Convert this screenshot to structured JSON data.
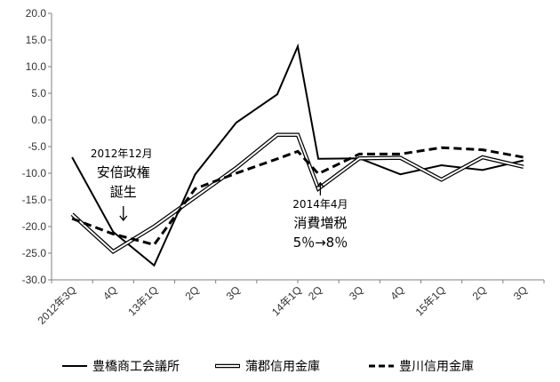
{
  "chart_data": {
    "type": "line",
    "categories": [
      "2012年3Q",
      "4Q",
      "13年1Q",
      "2Q",
      "3Q",
      "14年1Q",
      "2Q",
      "3Q",
      "4Q",
      "15年1Q",
      "2Q",
      "3Q"
    ],
    "x_positions": [
      0,
      1,
      2,
      3,
      4,
      5.5,
      6,
      7,
      8,
      9,
      10,
      11
    ],
    "category_slots": 12,
    "ylim": [
      -30,
      20
    ],
    "yticks": [
      "20.0",
      "15.0",
      "10.0",
      "5.0",
      "0.0",
      "-5.0",
      "-10.0",
      "-15.0",
      "-20.0",
      "-25.0",
      "-30.0"
    ],
    "ytick_values": [
      20,
      15,
      10,
      5,
      0,
      -5,
      -10,
      -15,
      -20,
      -25,
      -30
    ],
    "grid": "none",
    "legend_position": "bottom",
    "series": [
      {
        "name": "豊橋商工会議所",
        "style": "solid",
        "color": "#000000",
        "x": [
          0,
          1,
          2,
          3,
          4,
          5,
          5.5,
          6,
          7,
          8,
          9,
          10,
          11
        ],
        "values": [
          -7.0,
          -21.0,
          -27.3,
          -10.2,
          -0.5,
          4.8,
          13.8,
          -7.3,
          -7.2,
          -10.2,
          -8.5,
          -9.4,
          -7.6
        ]
      },
      {
        "name": "蒲郡信用金庫",
        "style": "double",
        "color": "#000000",
        "x": [
          0,
          1,
          2,
          3,
          4,
          5,
          5.5,
          6,
          7,
          8,
          9,
          10,
          11
        ],
        "values": [
          -17.7,
          -24.7,
          -20.0,
          -14.5,
          -9.0,
          -2.8,
          -2.8,
          -12.9,
          -7.2,
          -7.1,
          -11.2,
          -7.0,
          -8.8
        ]
      },
      {
        "name": "豊川信用金庫",
        "style": "dashed",
        "color": "#000000",
        "x": [
          0,
          1,
          2,
          3,
          4,
          5,
          5.5,
          6,
          7,
          8,
          9,
          10,
          11
        ],
        "values": [
          -18.5,
          -21.4,
          -23.4,
          -12.9,
          -10.0,
          -7.3,
          -5.9,
          -10.1,
          -6.4,
          -6.4,
          -5.2,
          -5.6,
          -7.0
        ]
      }
    ],
    "annotations": [
      {
        "lines": [
          "2012年12月",
          "安倍政権",
          "誕生"
        ],
        "arrow": "down",
        "x": 1.25,
        "y": -19.0
      },
      {
        "lines": [
          "2014年4月",
          "消費増税",
          "5％→8％"
        ],
        "arrow": "up",
        "x": 6.05,
        "y": -11.8
      }
    ]
  }
}
